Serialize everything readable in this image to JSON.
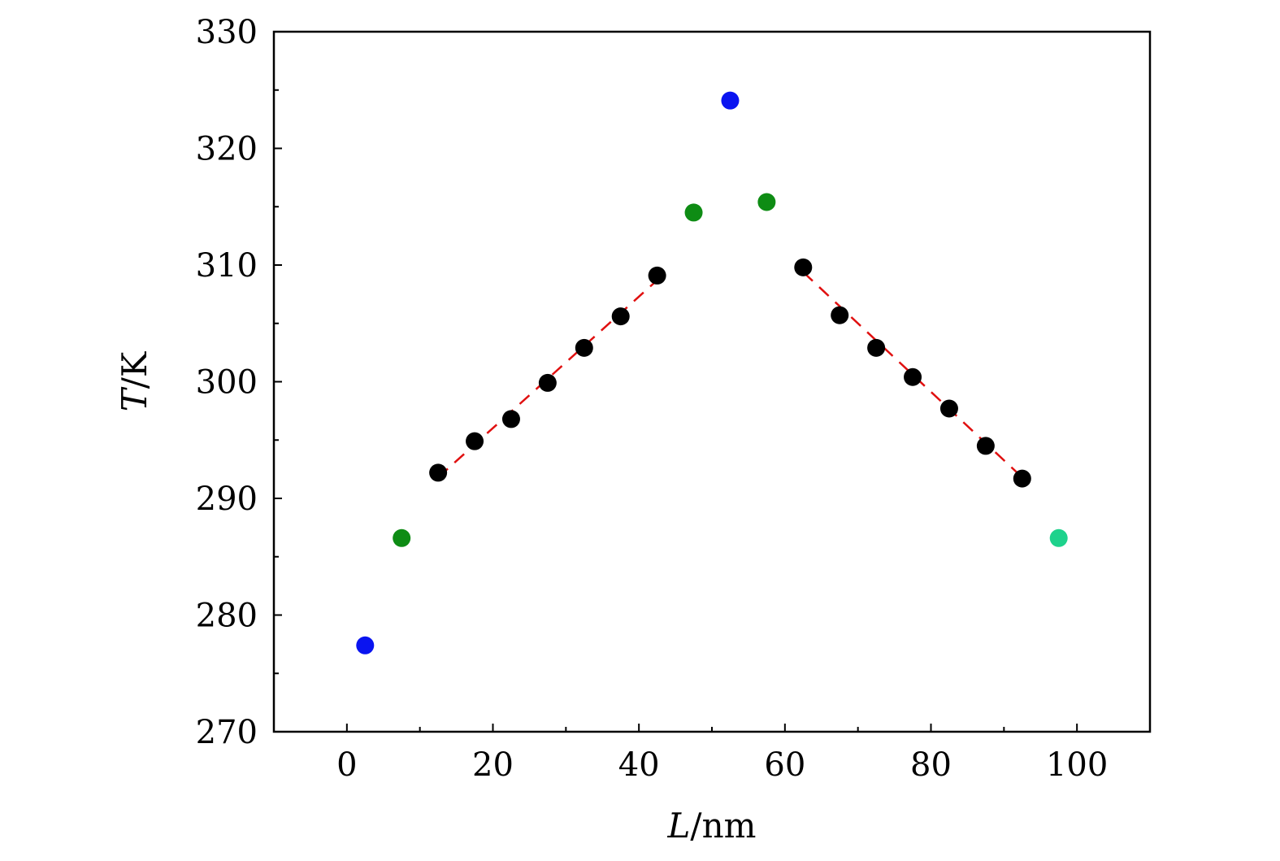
{
  "chart_data": {
    "type": "scatter",
    "title": "",
    "xlabel": {
      "var": "L",
      "unit": "/nm"
    },
    "ylabel": {
      "var": "T",
      "unit": "/K"
    },
    "xlim": [
      -10,
      110
    ],
    "ylim": [
      270,
      330
    ],
    "xticks": [
      0,
      20,
      40,
      60,
      80,
      100
    ],
    "yticks": [
      270,
      280,
      290,
      300,
      310,
      320,
      330
    ],
    "xminor": [
      10,
      30,
      50,
      70,
      90
    ],
    "yminor": [
      275,
      285,
      295,
      305,
      315,
      325
    ],
    "grid": false,
    "legend": "none",
    "points": [
      {
        "x": 2.5,
        "y": 277.4,
        "color": "#0a14f0"
      },
      {
        "x": 7.5,
        "y": 286.6,
        "color": "#0e8c14"
      },
      {
        "x": 12.5,
        "y": 292.2,
        "color": "#000000"
      },
      {
        "x": 17.5,
        "y": 294.9,
        "color": "#000000"
      },
      {
        "x": 22.5,
        "y": 296.8,
        "color": "#000000"
      },
      {
        "x": 27.5,
        "y": 299.9,
        "color": "#000000"
      },
      {
        "x": 32.5,
        "y": 302.9,
        "color": "#000000"
      },
      {
        "x": 37.5,
        "y": 305.6,
        "color": "#000000"
      },
      {
        "x": 42.5,
        "y": 309.1,
        "color": "#000000"
      },
      {
        "x": 47.5,
        "y": 314.5,
        "color": "#0e8c14"
      },
      {
        "x": 52.5,
        "y": 324.1,
        "color": "#0a14f0"
      },
      {
        "x": 57.5,
        "y": 315.4,
        "color": "#0e8c14"
      },
      {
        "x": 62.5,
        "y": 309.8,
        "color": "#000000"
      },
      {
        "x": 67.5,
        "y": 305.7,
        "color": "#000000"
      },
      {
        "x": 72.5,
        "y": 302.9,
        "color": "#000000"
      },
      {
        "x": 77.5,
        "y": 300.4,
        "color": "#000000"
      },
      {
        "x": 82.5,
        "y": 297.7,
        "color": "#000000"
      },
      {
        "x": 87.5,
        "y": 294.5,
        "color": "#000000"
      },
      {
        "x": 92.5,
        "y": 291.7,
        "color": "#000000"
      },
      {
        "x": 97.5,
        "y": 286.6,
        "color": "#1ed28c"
      }
    ],
    "fit_lines": [
      {
        "x": [
          12.5,
          42.5
        ],
        "y": [
          291.8,
          308.7
        ],
        "color": "#e01010",
        "style": "dashed"
      },
      {
        "x": [
          62.5,
          92.5
        ],
        "y": [
          309.4,
          291.8
        ],
        "color": "#e01010",
        "style": "dashed"
      }
    ]
  }
}
